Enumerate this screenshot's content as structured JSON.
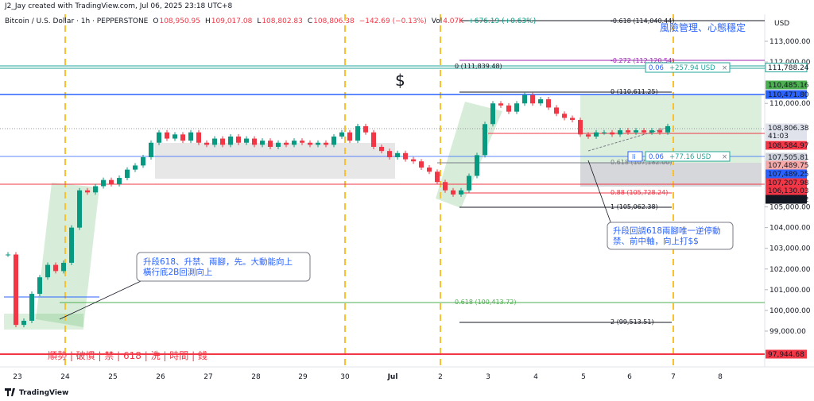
{
  "header": {
    "creator": "J2_Jay created with TradingView.com, Jul 06, 2025 23:18 UTC+8"
  },
  "legend": {
    "symbol": "Bitcoin / U.S. Dollar · 1h · PEPPERSTONE",
    "o_label": "O",
    "o": "108,950.95",
    "h_label": "H",
    "h": "109,017.08",
    "l_label": "L",
    "l": "108,802.83",
    "c_label": "C",
    "c": "108,806.38",
    "change": "−142.69 (−0.13%)",
    "vol_label": "Vol",
    "vol": "4.07K",
    "vol_change": "+676.19 (+0.63%)"
  },
  "price_axis": {
    "currency": "USD",
    "ticks": [
      {
        "value": 113000,
        "label": "113,000.00"
      },
      {
        "value": 112000,
        "label": "112,000.00"
      },
      {
        "value": 110000,
        "label": "110,000.00"
      },
      {
        "value": 105000,
        "label": "105,000.00"
      },
      {
        "value": 104000,
        "label": "104,000.00"
      },
      {
        "value": 103000,
        "label": "103,000.00"
      },
      {
        "value": 102000,
        "label": "102,000.00"
      },
      {
        "value": 101000,
        "label": "101,000.00"
      },
      {
        "value": 100000,
        "label": "100,000.00"
      },
      {
        "value": 99000,
        "label": "99,000.00"
      }
    ]
  },
  "price_tags": [
    "111,788.24",
    "110,485.16",
    "110,471.80",
    "108,806.38",
    "41:03",
    "108,584.97",
    "107,505.81",
    "107,489.75",
    "107,489.25",
    "107,207.98",
    "106,130.03",
    "105,991.92",
    "97,944.68"
  ],
  "time_axis": {
    "labels": [
      "23",
      "24",
      "25",
      "26",
      "27",
      "28",
      "29",
      "30",
      "Jul",
      "2",
      "3",
      "4",
      "5",
      "6",
      "7",
      "8"
    ]
  },
  "fib_labels": [
    "-0.618 (114,040.44)",
    "-0.272 (112,120.54)",
    "0 (111,839.48)",
    "0 (110,611.25)",
    "0.618 (107,182.00)",
    "0.88 (105,728.24)",
    "1 (105,062.38)",
    "0.618 (100,413.72)",
    "2 (99,513.51)"
  ],
  "annotations": {
    "risk": "風險管理、心態穩定",
    "dollar": "$",
    "callout1": [
      "升段618、升禁、兩腳，先。大動能向上",
      "橫行底2B回測向上"
    ],
    "callout2": [
      "升段回調618兩腳唯一逆停動",
      "禁、前中軸，向上打$$"
    ],
    "rules": "順勢 | 破慣 | 禁 | 618 | 洗 | 時間 | 錢"
  },
  "positions": [
    {
      "ratio": "0.06",
      "pnl": "+257.94 USD",
      "close": "×"
    },
    {
      "icon": "li",
      "ratio": "0.06",
      "pnl": "+77.16 USD",
      "close": "×"
    }
  ],
  "price_path": [
    102700,
    99300,
    99500,
    100800,
    101600,
    102200,
    101900,
    102300,
    104000,
    105800,
    105700,
    106000,
    106300,
    106100,
    106400,
    106800,
    107000,
    107400,
    108100,
    108600,
    108300,
    108500,
    108200,
    108600,
    108100,
    108000,
    108300,
    108000,
    108400,
    108100,
    108300,
    108000,
    108200,
    107900,
    108100,
    108000,
    108200,
    108100,
    108000,
    108100,
    108000,
    108400,
    108600,
    108200,
    108900,
    108600,
    107900,
    107700,
    107400,
    107600,
    107300,
    107200,
    106900,
    106700,
    106200,
    105800,
    105600,
    105800,
    106500,
    107500,
    109000,
    110000,
    109900,
    109600,
    110000,
    110400,
    110000,
    110200,
    109800,
    109500,
    109300,
    109200,
    108500,
    108400,
    108600,
    108600,
    108500,
    108700,
    108600,
    108700,
    108600,
    108700,
    108600,
    108900
  ],
  "footer": {
    "brand": "TradingView"
  }
}
